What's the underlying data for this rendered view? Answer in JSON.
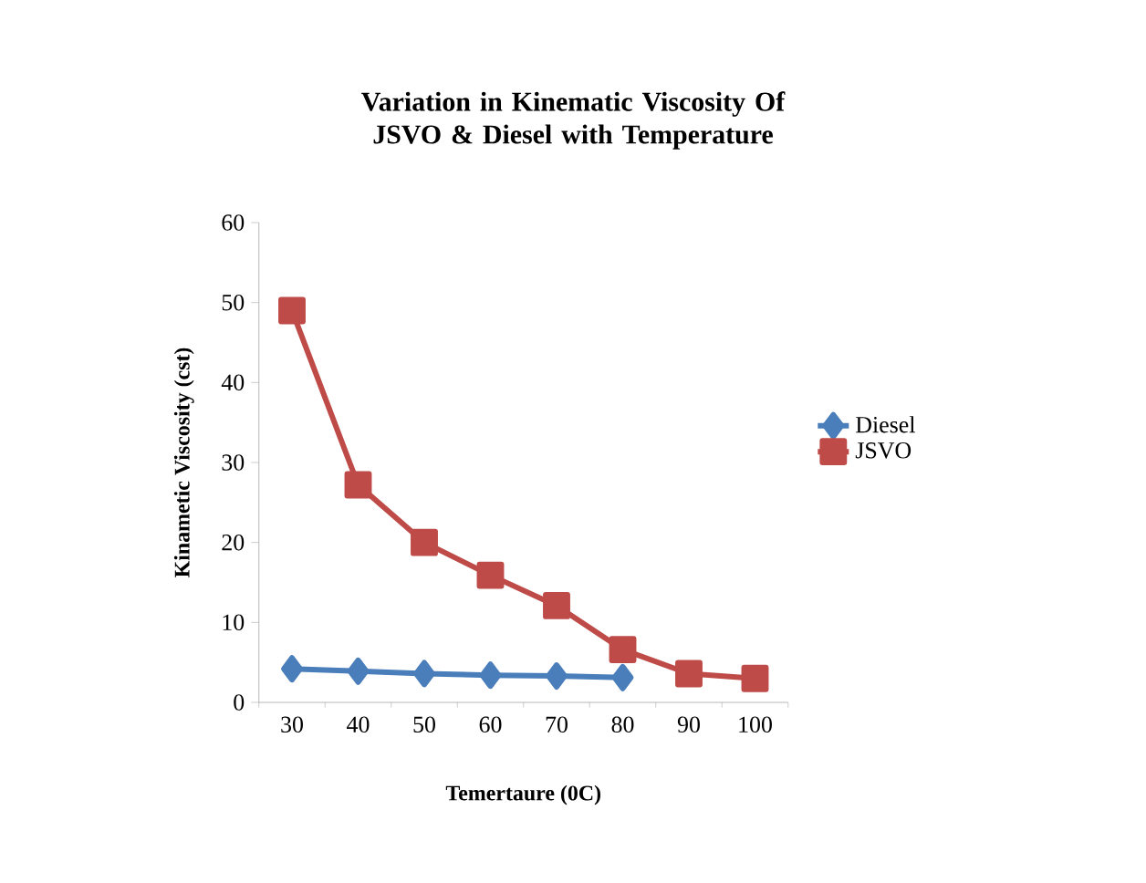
{
  "chart_data": {
    "type": "line",
    "title": "Variation in Kinematic Viscosity Of JSVO & Diesel with Temperature",
    "xlabel": "Temertaure (0C)",
    "ylabel": "Kinametic Viscosity (cst)",
    "categories": [
      "30",
      "40",
      "50",
      "60",
      "70",
      "80",
      "90",
      "100"
    ],
    "series": [
      {
        "name": "Diesel",
        "color": "#4a7ebb",
        "marker": "diamond",
        "values": [
          4.2,
          3.9,
          3.6,
          3.4,
          3.3,
          3.1,
          null,
          null
        ]
      },
      {
        "name": "JSVO",
        "color": "#be4b48",
        "marker": "square",
        "values": [
          49,
          27.2,
          20,
          15.9,
          12.1,
          6.6,
          3.6,
          3.0
        ]
      }
    ],
    "ylim": [
      0,
      60
    ],
    "yticks": [
      0,
      10,
      20,
      30,
      40,
      50,
      60
    ],
    "grid": false,
    "legend": "right",
    "line_style": "solid"
  }
}
